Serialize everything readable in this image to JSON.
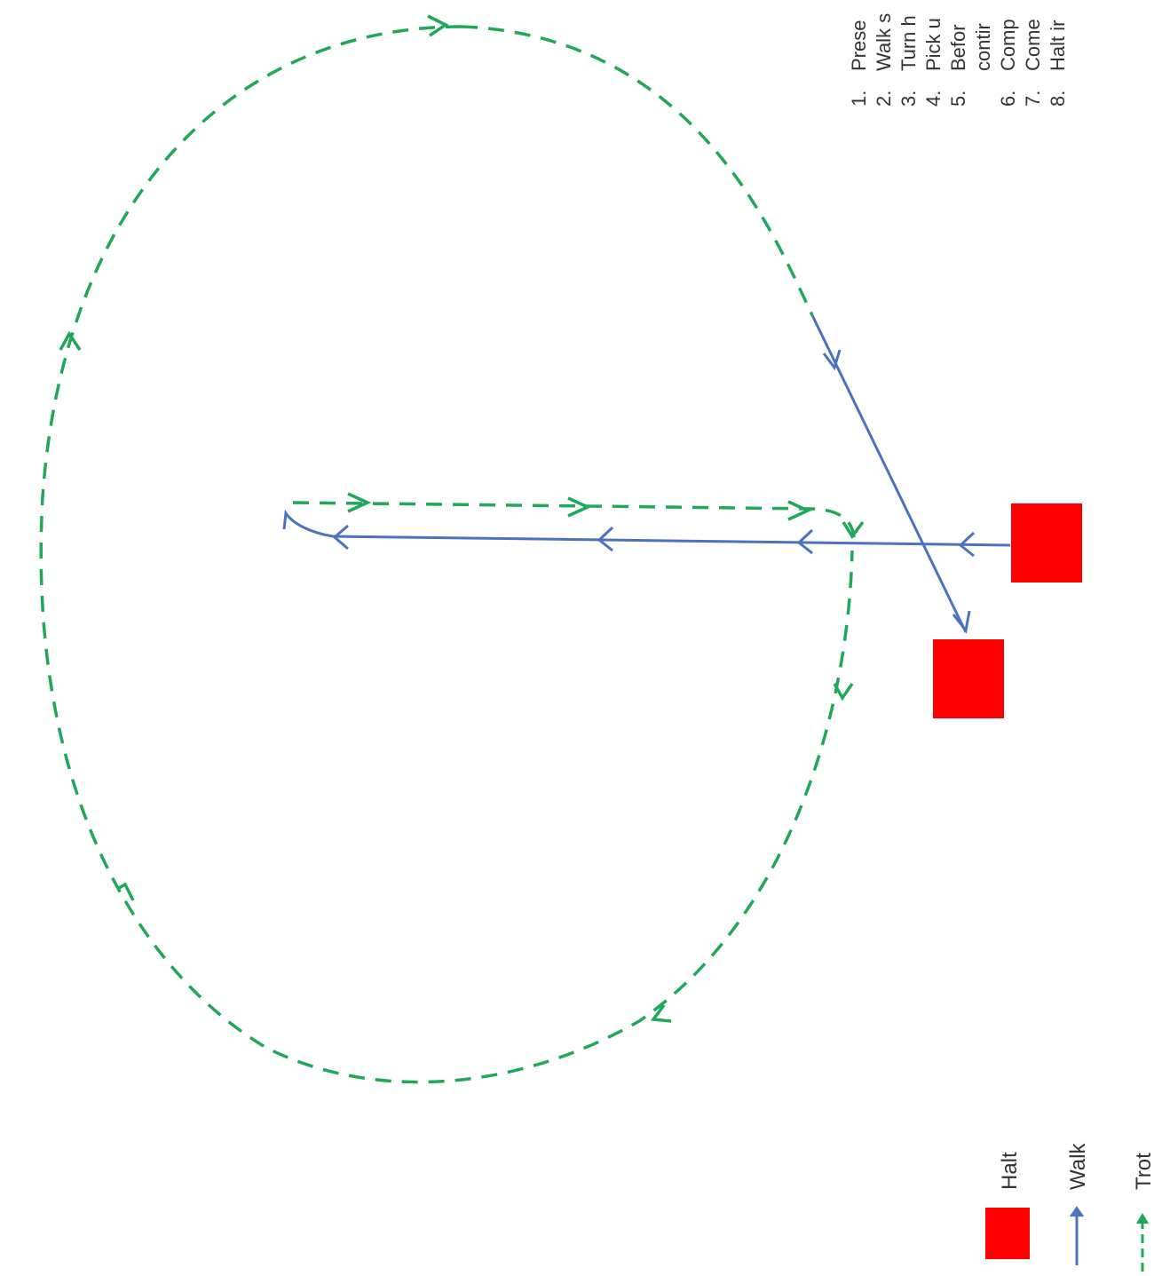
{
  "colors": {
    "halt": "#ff0000",
    "walk": "#4a72c0",
    "trot": "#1fa75a",
    "text": "#333333"
  },
  "instructions": {
    "items": [
      {
        "num": "1.",
        "text": "Prese"
      },
      {
        "num": "2.",
        "text": "Walk s"
      },
      {
        "num": "3.",
        "text": "Turn h"
      },
      {
        "num": "4.",
        "text": "Pick u"
      },
      {
        "num": "5.",
        "text": "Befor"
      },
      {
        "num": "",
        "text": "contir"
      },
      {
        "num": "6.",
        "text": "Comp"
      },
      {
        "num": "7.",
        "text": "Come"
      },
      {
        "num": "8.",
        "text": "Halt ir"
      }
    ]
  },
  "legend": {
    "halt_label": "Halt",
    "walk_label": "Walk",
    "trot_label": "Trot"
  }
}
